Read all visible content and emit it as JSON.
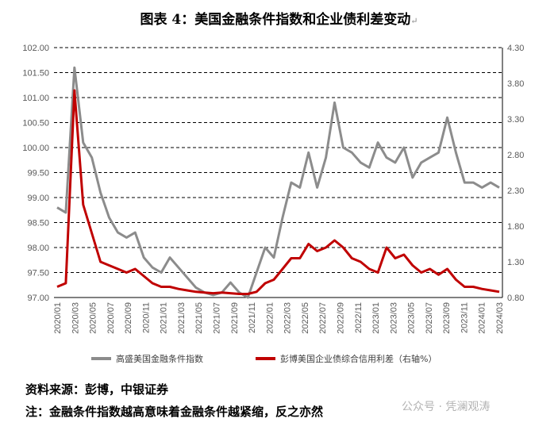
{
  "header": {
    "title": "图表 4：美国金融条件指数和企业债利差变动",
    "return_mark": "↵"
  },
  "footer": {
    "source": "资料来源：彭博，中银证券",
    "note": "注：金融条件指数越高意味着金融条件越紧缩，反之亦然",
    "watermark": "公众号 · 凭澜观涛"
  },
  "chart_data": {
    "type": "line",
    "xlabel": "",
    "ylabel": "",
    "x": [
      "2020-01",
      "2020-02",
      "2020-03",
      "2020-04",
      "2020-05",
      "2020-06",
      "2020-07",
      "2020-08",
      "2020-09",
      "2020-10",
      "2020-11",
      "2020-12",
      "2021-01",
      "2021-02",
      "2021-03",
      "2021-04",
      "2021-05",
      "2021-06",
      "2021-07",
      "2021-08",
      "2021-09",
      "2021-10",
      "2021-11",
      "2021-12",
      "2022-01",
      "2022-02",
      "2022-03",
      "2022-04",
      "2022-05",
      "2022-06",
      "2022-07",
      "2022-08",
      "2022-09",
      "2022-10",
      "2022-11",
      "2022-12",
      "2023-01",
      "2023-02",
      "2023-03",
      "2023-04",
      "2023-05",
      "2023-06",
      "2023-07",
      "2023-08",
      "2023-09",
      "2023-10",
      "2023-11",
      "2023-12",
      "2024-01",
      "2024-02",
      "2024-03",
      "2024-04"
    ],
    "x_tick_labels": [
      "2020/01",
      "2020/03",
      "2020/05",
      "2020/07",
      "2020/09",
      "2020/11",
      "2021/01",
      "2021/03",
      "2021/05",
      "2021/07",
      "2021/09",
      "2021/11",
      "2022/01",
      "2022/03",
      "2022/05",
      "2022/07",
      "2022/09",
      "2022/11",
      "2023/01",
      "2023/03",
      "2023/05",
      "2023/07",
      "2023/09",
      "2023/11",
      "2024/01",
      "2024/03"
    ],
    "y_left": {
      "ylim": [
        97.0,
        102.0
      ],
      "ticks": [
        "97.00",
        "97.50",
        "98.00",
        "98.50",
        "99.00",
        "99.50",
        "100.00",
        "100.50",
        "101.00",
        "101.50",
        "102.00"
      ]
    },
    "y_right": {
      "ylim": [
        0.8,
        4.3
      ],
      "ticks": [
        "0.80",
        "1.30",
        "1.80",
        "2.30",
        "2.80",
        "3.30",
        "3.80",
        "4.30"
      ]
    },
    "grid": "horizontal-dashed",
    "legend_position": "bottom",
    "series": [
      {
        "name": "高盛美国金融条件指数",
        "axis": "left",
        "color": "#8c8c8c",
        "values": [
          98.8,
          98.7,
          101.6,
          100.1,
          99.8,
          99.1,
          98.6,
          98.3,
          98.2,
          98.3,
          97.8,
          97.6,
          97.5,
          97.8,
          97.6,
          97.4,
          97.2,
          97.1,
          97.05,
          97.1,
          97.3,
          97.1,
          97.0,
          97.5,
          98.0,
          97.8,
          98.6,
          99.3,
          99.2,
          99.9,
          99.2,
          99.8,
          100.9,
          100.0,
          99.9,
          99.7,
          99.6,
          100.1,
          99.8,
          99.7,
          100.0,
          99.4,
          99.7,
          99.8,
          99.9,
          100.6,
          99.9,
          99.3,
          99.3,
          99.2,
          99.3,
          99.2
        ]
      },
      {
        "name": "彭博美国企业债综合信用利差（右轴%）",
        "axis": "right",
        "color": "#c00000",
        "values": [
          0.95,
          1.0,
          3.7,
          2.1,
          1.7,
          1.3,
          1.25,
          1.2,
          1.15,
          1.2,
          1.1,
          1.0,
          0.95,
          0.95,
          0.92,
          0.9,
          0.88,
          0.87,
          0.86,
          0.87,
          0.86,
          0.85,
          0.85,
          0.88,
          1.0,
          1.05,
          1.2,
          1.35,
          1.35,
          1.55,
          1.45,
          1.5,
          1.6,
          1.5,
          1.35,
          1.3,
          1.2,
          1.15,
          1.5,
          1.35,
          1.4,
          1.25,
          1.15,
          1.2,
          1.12,
          1.2,
          1.05,
          0.95,
          0.95,
          0.92,
          0.9,
          0.88
        ]
      }
    ]
  }
}
